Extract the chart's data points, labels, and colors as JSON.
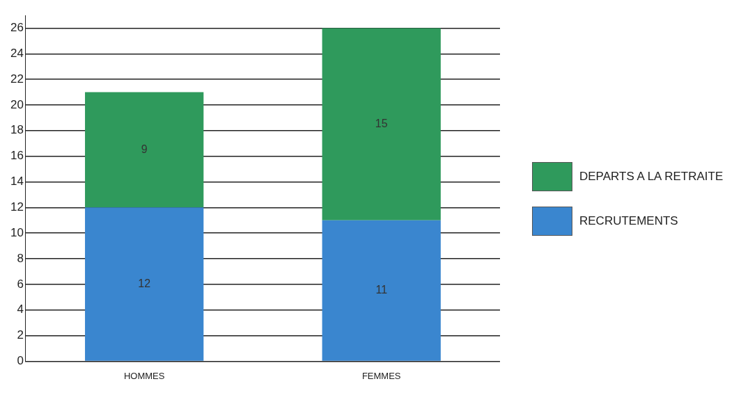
{
  "chart_data": {
    "type": "bar",
    "stacked": true,
    "categories": [
      "HOMMES",
      "FEMMES"
    ],
    "series": [
      {
        "name": "RECRUTEMENTS",
        "color": "#3a86cf",
        "values": [
          12,
          11
        ]
      },
      {
        "name": "DEPARTS A LA RETRAITE",
        "color": "#2f9a5c",
        "values": [
          9,
          15
        ]
      }
    ],
    "ylim": [
      0,
      27
    ],
    "yticks": [
      0,
      2,
      4,
      6,
      8,
      10,
      12,
      14,
      16,
      18,
      20,
      22,
      24,
      26
    ],
    "grid": "y",
    "legend": "right",
    "data_labels": true
  }
}
